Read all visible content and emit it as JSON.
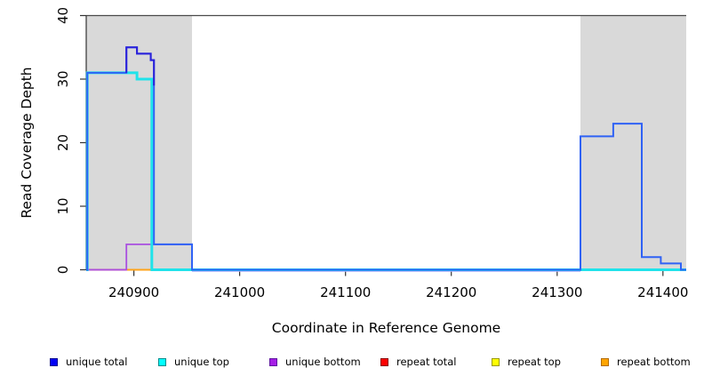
{
  "chart_data": {
    "type": "line",
    "subtype": "step",
    "title": "",
    "xlabel": "Coordinate in Reference Genome",
    "ylabel": "Read Coverage Depth",
    "xlim": [
      240855,
      241422
    ],
    "ylim": [
      0,
      40
    ],
    "x_ticks": [
      240900,
      241000,
      241100,
      241200,
      241300,
      241400
    ],
    "y_ticks": [
      0,
      10,
      20,
      30,
      40
    ],
    "grid": false,
    "legend_position": "bottom",
    "background": "#ffffff",
    "axis_color": "#333333",
    "top_rule": {
      "y": 40,
      "color": "#4a4a4a"
    },
    "shaded_regions": [
      {
        "name": "repeat-region-left",
        "x0": 240855,
        "x1": 240955,
        "color": "#d9d9d9"
      },
      {
        "name": "repeat-region-right",
        "x0": 241322,
        "x1": 241422,
        "color": "#d9d9d9"
      }
    ],
    "series": [
      {
        "name": "unique total",
        "color": "#2f62f5",
        "width": 2,
        "render": true,
        "points": [
          [
            240855,
            0
          ],
          [
            240856,
            31
          ],
          [
            240893,
            35
          ],
          [
            240903,
            34
          ],
          [
            240916,
            33
          ],
          [
            240919,
            4
          ],
          [
            240955,
            0
          ],
          [
            241322,
            21
          ],
          [
            241353,
            23
          ],
          [
            241380,
            2
          ],
          [
            241398,
            1
          ],
          [
            241417,
            0
          ],
          [
            241422,
            0
          ]
        ],
        "overlay": {
          "color": "#2b20d9",
          "width": 2,
          "points": [
            [
              240893,
              31
            ],
            [
              240893,
              35
            ],
            [
              240903,
              34
            ],
            [
              240916,
              33
            ],
            [
              240919,
              29
            ]
          ]
        }
      },
      {
        "name": "unique top",
        "color": "#1fe3ea",
        "width": 3,
        "render": true,
        "points": [
          [
            240855,
            0
          ],
          [
            240856,
            31
          ],
          [
            240903,
            30
          ],
          [
            240917,
            0
          ],
          [
            241422,
            0
          ]
        ]
      },
      {
        "name": "unique bottom",
        "color": "#a94fe0",
        "width": 1.8,
        "render": true,
        "points": [
          [
            240855,
            0
          ],
          [
            240893,
            4
          ],
          [
            240955,
            0
          ],
          [
            241422,
            0
          ]
        ]
      },
      {
        "name": "repeat total",
        "color": "#ff0000",
        "width": 1.5,
        "render": false,
        "points": [
          [
            240855,
            0
          ],
          [
            241422,
            0
          ]
        ]
      },
      {
        "name": "repeat top",
        "color": "#ffff00",
        "width": 1.5,
        "render": false,
        "points": [
          [
            240855,
            0
          ],
          [
            241422,
            0
          ]
        ]
      },
      {
        "name": "repeat bottom",
        "color": "#ffa500",
        "width": 1.5,
        "render": false,
        "points": [
          [
            240855,
            0
          ],
          [
            241422,
            0
          ]
        ]
      }
    ],
    "baseline_render_segments": [
      {
        "x0": 240855,
        "x1": 240893,
        "color": "#e0547a",
        "width": 2,
        "dy": 0
      },
      {
        "x0": 240893,
        "x1": 240917,
        "color": "#ffa319",
        "width": 2,
        "dy": 0
      },
      {
        "x0": 240917,
        "x1": 240955,
        "color": "#8fdd96",
        "width": 2,
        "dy": 0
      },
      {
        "x0": 240955,
        "x1": 241322,
        "color": "#b3a6fa",
        "width": 2.5,
        "dy": 1
      },
      {
        "x0": 241322,
        "x1": 241422,
        "color": "#e64a66",
        "width": 1.6,
        "dy": 0
      }
    ]
  },
  "legend": {
    "items": [
      {
        "label": "unique total",
        "fill": "#0000f5",
        "border": "#000090"
      },
      {
        "label": "unique top",
        "fill": "#00ffff",
        "border": "#008b8b"
      },
      {
        "label": "unique bottom",
        "fill": "#a61ee6",
        "border": "#5e13a0"
      },
      {
        "label": "repeat total",
        "fill": "#ff0000",
        "border": "#8b0000"
      },
      {
        "label": "repeat top",
        "fill": "#ffff00",
        "border": "#9a9a00"
      },
      {
        "label": "repeat bottom",
        "fill": "#ffa500",
        "border": "#b36b00"
      }
    ]
  }
}
